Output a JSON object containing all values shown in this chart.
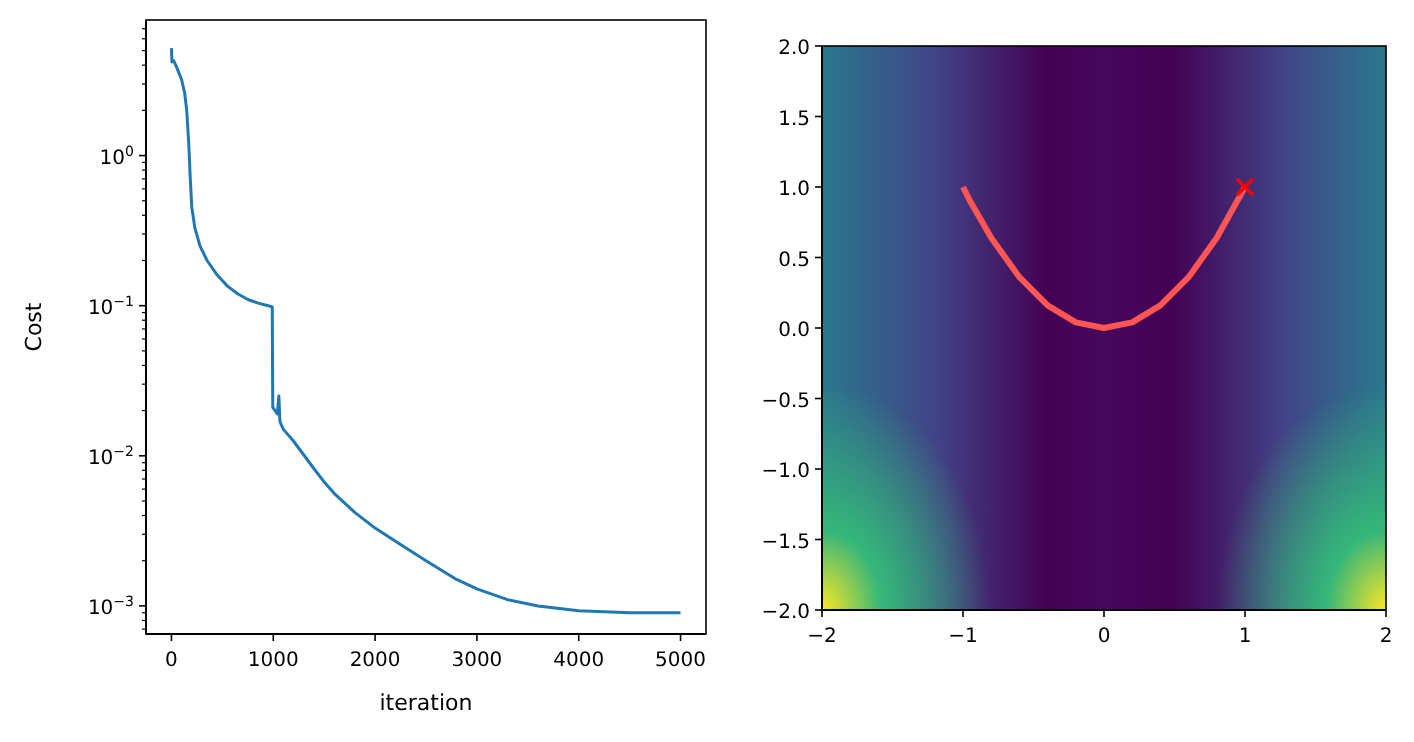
{
  "chart_data": [
    {
      "type": "line",
      "xlabel": "iteration",
      "ylabel": "Cost",
      "log": "y",
      "marker": "none",
      "xlim": [
        -250,
        5250
      ],
      "xticks": [
        0,
        1000,
        2000,
        3000,
        4000,
        5000
      ],
      "ylim": [
        0.00065,
        8
      ],
      "yticks": [
        {
          "value": 0.001,
          "label": "10$^{−3}$"
        },
        {
          "value": 0.01,
          "label": "10$^{−2}$"
        },
        {
          "value": 0.1,
          "label": "10$^{−1}$"
        },
        {
          "value": 1,
          "label": "10$^{0}$"
        },
        {
          "value": 0.0007,
          "label": null
        },
        {
          "value": 0.0008,
          "label": null
        },
        {
          "value": 0.0009,
          "label": null
        },
        {
          "value": 0.002,
          "label": null
        },
        {
          "value": 0.003,
          "label": null
        },
        {
          "value": 0.004,
          "label": null
        },
        {
          "value": 0.005,
          "label": null
        },
        {
          "value": 0.006,
          "label": null
        },
        {
          "value": 0.007,
          "label": null
        },
        {
          "value": 0.008,
          "label": null
        },
        {
          "value": 0.009,
          "label": null
        },
        {
          "value": 0.02,
          "label": null
        },
        {
          "value": 0.03,
          "label": null
        },
        {
          "value": 0.04,
          "label": null
        },
        {
          "value": 0.05,
          "label": null
        },
        {
          "value": 0.06,
          "label": null
        },
        {
          "value": 0.07,
          "label": null
        },
        {
          "value": 0.08,
          "label": null
        },
        {
          "value": 0.09,
          "label": null
        },
        {
          "value": 0.2,
          "label": null
        },
        {
          "value": 0.3,
          "label": null
        },
        {
          "value": 0.4,
          "label": null
        },
        {
          "value": 0.5,
          "label": null
        },
        {
          "value": 0.6,
          "label": null
        },
        {
          "value": 0.7,
          "label": null
        },
        {
          "value": 0.8,
          "label": null
        },
        {
          "value": 0.9,
          "label": null
        },
        {
          "value": 2,
          "label": null
        },
        {
          "value": 3,
          "label": null
        },
        {
          "value": 4,
          "label": null
        },
        {
          "value": 5,
          "label": null
        },
        {
          "value": 6,
          "label": null
        },
        {
          "value": 7,
          "label": null
        }
      ],
      "series": [
        {
          "color": "#1f77b4",
          "x": [
            0,
            5,
            20,
            50,
            100,
            130,
            150,
            170,
            185,
            200,
            230,
            280,
            350,
            450,
            550,
            650,
            750,
            850,
            950,
            990,
            995,
            1040,
            1055,
            1065,
            1080,
            1100,
            1200,
            1400,
            1500,
            1600,
            1800,
            2000,
            2200,
            2500,
            2800,
            3000,
            3300,
            3600,
            4000,
            4500,
            5000
          ],
          "values": [
            5.2,
            4.2,
            4.3,
            3.9,
            3.2,
            2.6,
            2.0,
            1.2,
            0.7,
            0.45,
            0.33,
            0.25,
            0.2,
            0.16,
            0.135,
            0.12,
            0.11,
            0.104,
            0.1,
            0.098,
            0.021,
            0.019,
            0.025,
            0.017,
            0.016,
            0.015,
            0.0125,
            0.0082,
            0.0067,
            0.0056,
            0.0042,
            0.0033,
            0.0027,
            0.002,
            0.0015,
            0.0013,
            0.0011,
            0.001,
            0.00093,
            0.0009,
            0.0009
          ]
        }
      ]
    },
    {
      "type": "line",
      "marker": "none",
      "xlim": [
        -2,
        2
      ],
      "xticks": [
        {
          "value": -2,
          "label": "−2"
        },
        {
          "value": -1,
          "label": "−1"
        },
        0,
        1,
        2
      ],
      "ylim": [
        -2,
        2
      ],
      "yticks": [
        {
          "value": -2,
          "label": "−2.0"
        },
        {
          "value": -1.5,
          "label": "−1.5"
        },
        {
          "value": -1,
          "label": "−1.0"
        },
        {
          "value": -0.5,
          "label": "−0.5"
        },
        {
          "value": 0,
          "label": "0.0"
        },
        {
          "value": 0.5,
          "label": "0.5"
        },
        {
          "value": 1,
          "label": "1.0"
        },
        {
          "value": 1.5,
          "label": "1.5"
        },
        {
          "value": 2,
          "label": "2.0"
        }
      ],
      "series": [
        {
          "color": "#ff5555",
          "x": [
            -1,
            -0.95,
            -0.8,
            -0.6,
            -0.4,
            -0.2,
            0,
            0.2,
            0.4,
            0.6,
            0.8,
            1
          ],
          "values": [
            1,
            0.9,
            0.64,
            0.36,
            0.16,
            0.04,
            0,
            0.04,
            0.16,
            0.36,
            0.64,
            1
          ]
        },
        {
          "type": "scatter",
          "marker": "cross",
          "color": "#ff0000",
          "x": [
            1
          ],
          "values": [
            1
          ]
        }
      ]
    }
  ]
}
